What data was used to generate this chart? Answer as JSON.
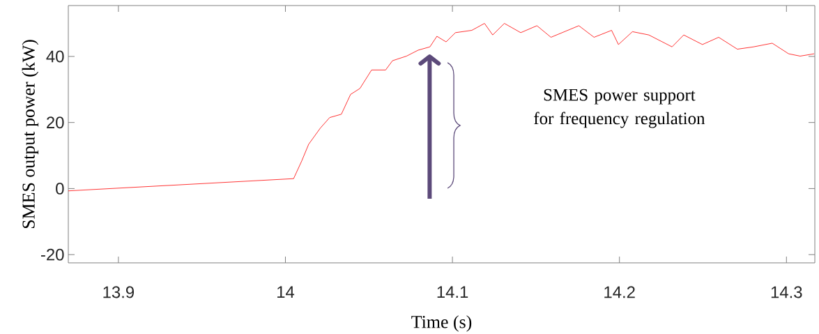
{
  "chart_data": {
    "type": "line",
    "xlabel": "Time (s)",
    "ylabel": "SMES output power (kW)",
    "annotations": [
      "SMES power support for frequency regulation"
    ],
    "xlim": [
      13.87,
      14.317
    ],
    "ylim": [
      -22.5,
      55.4
    ],
    "xticks": [
      13.9,
      14,
      14.1,
      14.2,
      14.3
    ],
    "yticks": [
      -20,
      0,
      20,
      40
    ],
    "series": [
      {
        "color": "#ff0000",
        "x": [
          13.87,
          14.0049,
          14.0098,
          14.0139,
          14.0209,
          14.0265,
          14.0335,
          14.039,
          14.0446,
          14.0516,
          14.06,
          14.0641,
          14.0725,
          14.0795,
          14.0865,
          14.0907,
          14.0962,
          14.1018,
          14.1116,
          14.1192,
          14.1241,
          14.1311,
          14.1409,
          14.1506,
          14.159,
          14.1757,
          14.1848,
          14.1953,
          14.1994,
          14.2078,
          14.2176,
          14.2315,
          14.2385,
          14.2497,
          14.2594,
          14.2706,
          14.2803,
          14.2915,
          14.3013,
          14.3082,
          14.3166
        ],
        "values": [
          -0.7,
          3.0,
          8.4,
          13.4,
          18.3,
          21.5,
          22.5,
          28.5,
          30.3,
          35.9,
          35.9,
          38.7,
          40.1,
          41.9,
          42.9,
          46.1,
          44.4,
          47.2,
          47.9,
          50.0,
          46.5,
          50.0,
          47.2,
          49.3,
          45.8,
          49.3,
          45.8,
          47.9,
          43.6,
          47.5,
          46.5,
          42.9,
          46.5,
          43.6,
          45.8,
          42.2,
          42.9,
          44.0,
          40.8,
          40.1,
          40.8
        ]
      }
    ]
  }
}
